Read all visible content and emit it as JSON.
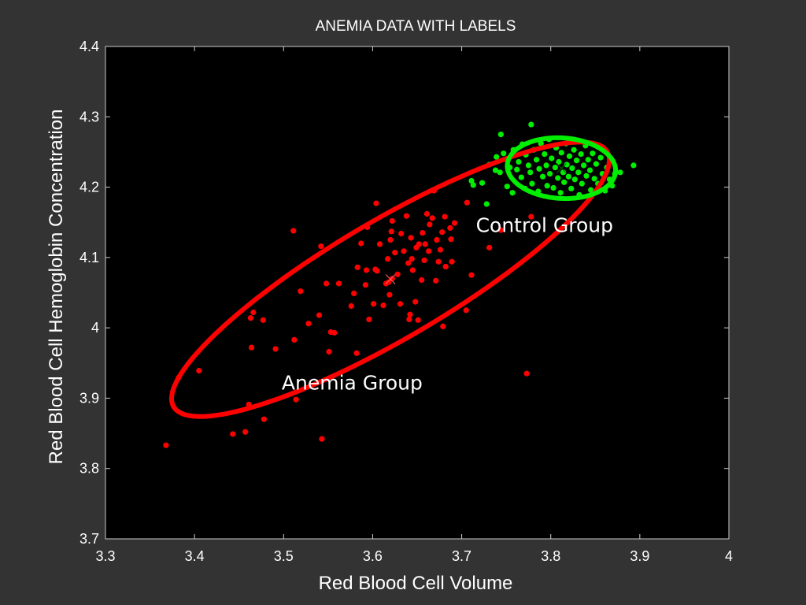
{
  "chart_data": {
    "type": "scatter",
    "title": "ANEMIA DATA WITH LABELS",
    "xlabel": "Red Blood Cell Volume",
    "ylabel": "Red Blood Cell Hemoglobin Concentration",
    "xlim": [
      3.3,
      4.0
    ],
    "ylim": [
      3.7,
      4.4
    ],
    "xticks": [
      3.3,
      3.4,
      3.5,
      3.6,
      3.7,
      3.8,
      3.9,
      4.0
    ],
    "xtick_labels": [
      "3.3",
      "3.4",
      "3.5",
      "3.6",
      "3.7",
      "3.8",
      "3.9",
      "4"
    ],
    "yticks": [
      3.7,
      3.8,
      3.9,
      4.0,
      4.1,
      4.2,
      4.3,
      4.4
    ],
    "ytick_labels": [
      "3.7",
      "3.8",
      "3.9",
      "4",
      "4.1",
      "4.2",
      "4.3",
      "4.4"
    ],
    "grid": false,
    "background": "#000000",
    "series": [
      {
        "name": "Anemia Group",
        "color": "#ff0000",
        "points": [
          [
            3.368,
            3.833
          ],
          [
            3.382,
            3.929
          ],
          [
            3.405,
            3.939
          ],
          [
            3.443,
            3.849
          ],
          [
            3.457,
            3.852
          ],
          [
            3.461,
            3.891
          ],
          [
            3.464,
            3.972
          ],
          [
            3.463,
            4.014
          ],
          [
            3.466,
            4.022
          ],
          [
            3.477,
            4.011
          ],
          [
            3.478,
            3.87
          ],
          [
            3.491,
            3.97
          ],
          [
            3.511,
            4.138
          ],
          [
            3.512,
            3.983
          ],
          [
            3.514,
            3.898
          ],
          [
            3.519,
            4.052
          ],
          [
            3.528,
            4.006
          ],
          [
            3.54,
            4.018
          ],
          [
            3.542,
            4.116
          ],
          [
            3.543,
            3.842
          ],
          [
            3.548,
            4.063
          ],
          [
            3.551,
            3.966
          ],
          [
            3.553,
            3.994
          ],
          [
            3.557,
            3.993
          ],
          [
            3.562,
            4.063
          ],
          [
            3.576,
            4.031
          ],
          [
            3.579,
            4.049
          ],
          [
            3.582,
            3.964
          ],
          [
            3.583,
            4.086
          ],
          [
            3.587,
            4.12
          ],
          [
            3.592,
            4.061
          ],
          [
            3.593,
            4.082
          ],
          [
            3.594,
            4.143
          ],
          [
            3.596,
            4.012
          ],
          [
            3.601,
            4.034
          ],
          [
            3.603,
            4.083
          ],
          [
            3.604,
            4.177
          ],
          [
            3.605,
            4.081
          ],
          [
            3.608,
            4.119
          ],
          [
            3.612,
            4.032
          ],
          [
            3.615,
            4.063
          ],
          [
            3.617,
            4.098
          ],
          [
            3.618,
            4.065
          ],
          [
            3.619,
            4.047
          ],
          [
            3.62,
            4.125
          ],
          [
            3.621,
            4.137
          ],
          [
            3.622,
            4.152
          ],
          [
            3.622,
            4.07
          ],
          [
            3.625,
            4.107
          ],
          [
            3.628,
            4.076
          ],
          [
            3.631,
            4.034
          ],
          [
            3.632,
            4.134
          ],
          [
            3.635,
            4.109
          ],
          [
            3.638,
            4.159
          ],
          [
            3.64,
            4.092
          ],
          [
            3.641,
            4.012
          ],
          [
            3.642,
            4.019
          ],
          [
            3.643,
            4.128
          ],
          [
            3.644,
            4.098
          ],
          [
            3.645,
            4.082
          ],
          [
            3.648,
            4.037
          ],
          [
            3.649,
            4.114
          ],
          [
            3.651,
            4.011
          ],
          [
            3.652,
            4.119
          ],
          [
            3.655,
            4.068
          ],
          [
            3.656,
            4.135
          ],
          [
            3.658,
            4.096
          ],
          [
            3.659,
            4.119
          ],
          [
            3.661,
            4.162
          ],
          [
            3.663,
            4.109
          ],
          [
            3.664,
            4.147
          ],
          [
            3.667,
            4.156
          ],
          [
            3.669,
            4.195
          ],
          [
            3.671,
            4.067
          ],
          [
            3.672,
            4.125
          ],
          [
            3.674,
            4.094
          ],
          [
            3.676,
            4.111
          ],
          [
            3.678,
            4.136
          ],
          [
            3.679,
            4.002
          ],
          [
            3.681,
            4.158
          ],
          [
            3.682,
            4.087
          ],
          [
            3.687,
            4.142
          ],
          [
            3.688,
            4.126
          ],
          [
            3.689,
            4.094
          ],
          [
            3.692,
            4.149
          ],
          [
            3.705,
            4.025
          ],
          [
            3.706,
            4.178
          ],
          [
            3.711,
            4.075
          ],
          [
            3.731,
            4.114
          ],
          [
            3.744,
            4.139
          ],
          [
            3.773,
            3.935
          ],
          [
            3.778,
            4.158
          ]
        ],
        "ellipse": {
          "center": [
            3.62,
            4.069
          ],
          "semi_major": 0.304,
          "semi_minor": 0.078,
          "angle_deg": 37.5
        },
        "label": "Anemia Group",
        "label_anchor": [
          3.577,
          3.912
        ]
      },
      {
        "name": "Control Group",
        "color": "#00ee00",
        "points": [
          [
            3.711,
            4.209
          ],
          [
            3.713,
            4.203
          ],
          [
            3.723,
            4.206
          ],
          [
            3.728,
            4.176
          ],
          [
            3.731,
            4.232
          ],
          [
            3.738,
            4.224
          ],
          [
            3.739,
            4.243
          ],
          [
            3.743,
            4.221
          ],
          [
            3.744,
            4.275
          ],
          [
            3.747,
            4.248
          ],
          [
            3.751,
            4.201
          ],
          [
            3.754,
            4.228
          ],
          [
            3.757,
            4.192
          ],
          [
            3.758,
            4.253
          ],
          [
            3.762,
            4.225
          ],
          [
            3.764,
            4.236
          ],
          [
            3.767,
            4.214
          ],
          [
            3.768,
            4.261
          ],
          [
            3.771,
            4.198
          ],
          [
            3.772,
            4.246
          ],
          [
            3.775,
            4.231
          ],
          [
            3.777,
            4.221
          ],
          [
            3.778,
            4.289
          ],
          [
            3.779,
            4.205
          ],
          [
            3.781,
            4.253
          ],
          [
            3.784,
            4.239
          ],
          [
            3.786,
            4.194
          ],
          [
            3.787,
            4.226
          ],
          [
            3.789,
            4.262
          ],
          [
            3.791,
            4.215
          ],
          [
            3.793,
            4.247
          ],
          [
            3.795,
            4.231
          ],
          [
            3.796,
            4.202
          ],
          [
            3.798,
            4.268
          ],
          [
            3.799,
            4.219
          ],
          [
            3.801,
            4.241
          ],
          [
            3.803,
            4.199
          ],
          [
            3.805,
            4.228
          ],
          [
            3.806,
            4.256
          ],
          [
            3.808,
            4.213
          ],
          [
            3.809,
            4.236
          ],
          [
            3.811,
            4.192
          ],
          [
            3.812,
            4.249
          ],
          [
            3.814,
            4.221
          ],
          [
            3.815,
            4.207
          ],
          [
            3.817,
            4.262
          ],
          [
            3.818,
            4.232
          ],
          [
            3.82,
            4.215
          ],
          [
            3.821,
            4.244
          ],
          [
            3.823,
            4.198
          ],
          [
            3.824,
            4.227
          ],
          [
            3.826,
            4.253
          ],
          [
            3.827,
            4.211
          ],
          [
            3.829,
            4.238
          ],
          [
            3.831,
            4.221
          ],
          [
            3.832,
            4.189
          ],
          [
            3.834,
            4.247
          ],
          [
            3.835,
            4.205
          ],
          [
            3.837,
            4.231
          ],
          [
            3.839,
            4.259
          ],
          [
            3.84,
            4.216
          ],
          [
            3.842,
            4.239
          ],
          [
            3.844,
            4.224
          ],
          [
            3.845,
            4.196
          ],
          [
            3.847,
            4.248
          ],
          [
            3.849,
            4.212
          ],
          [
            3.851,
            4.233
          ],
          [
            3.853,
            4.205
          ],
          [
            3.856,
            4.242
          ],
          [
            3.858,
            4.219
          ],
          [
            3.861,
            4.195
          ],
          [
            3.863,
            4.228
          ],
          [
            3.866,
            4.211
          ],
          [
            3.869,
            4.202
          ],
          [
            3.872,
            4.219
          ],
          [
            3.878,
            4.221
          ],
          [
            3.893,
            4.231
          ]
        ],
        "ellipse": {
          "center": [
            3.812,
            4.227
          ],
          "semi_major": 0.061,
          "semi_minor": 0.043,
          "angle_deg": -6
        },
        "label": "Control Group",
        "label_anchor": [
          3.793,
          4.136
        ]
      }
    ]
  }
}
